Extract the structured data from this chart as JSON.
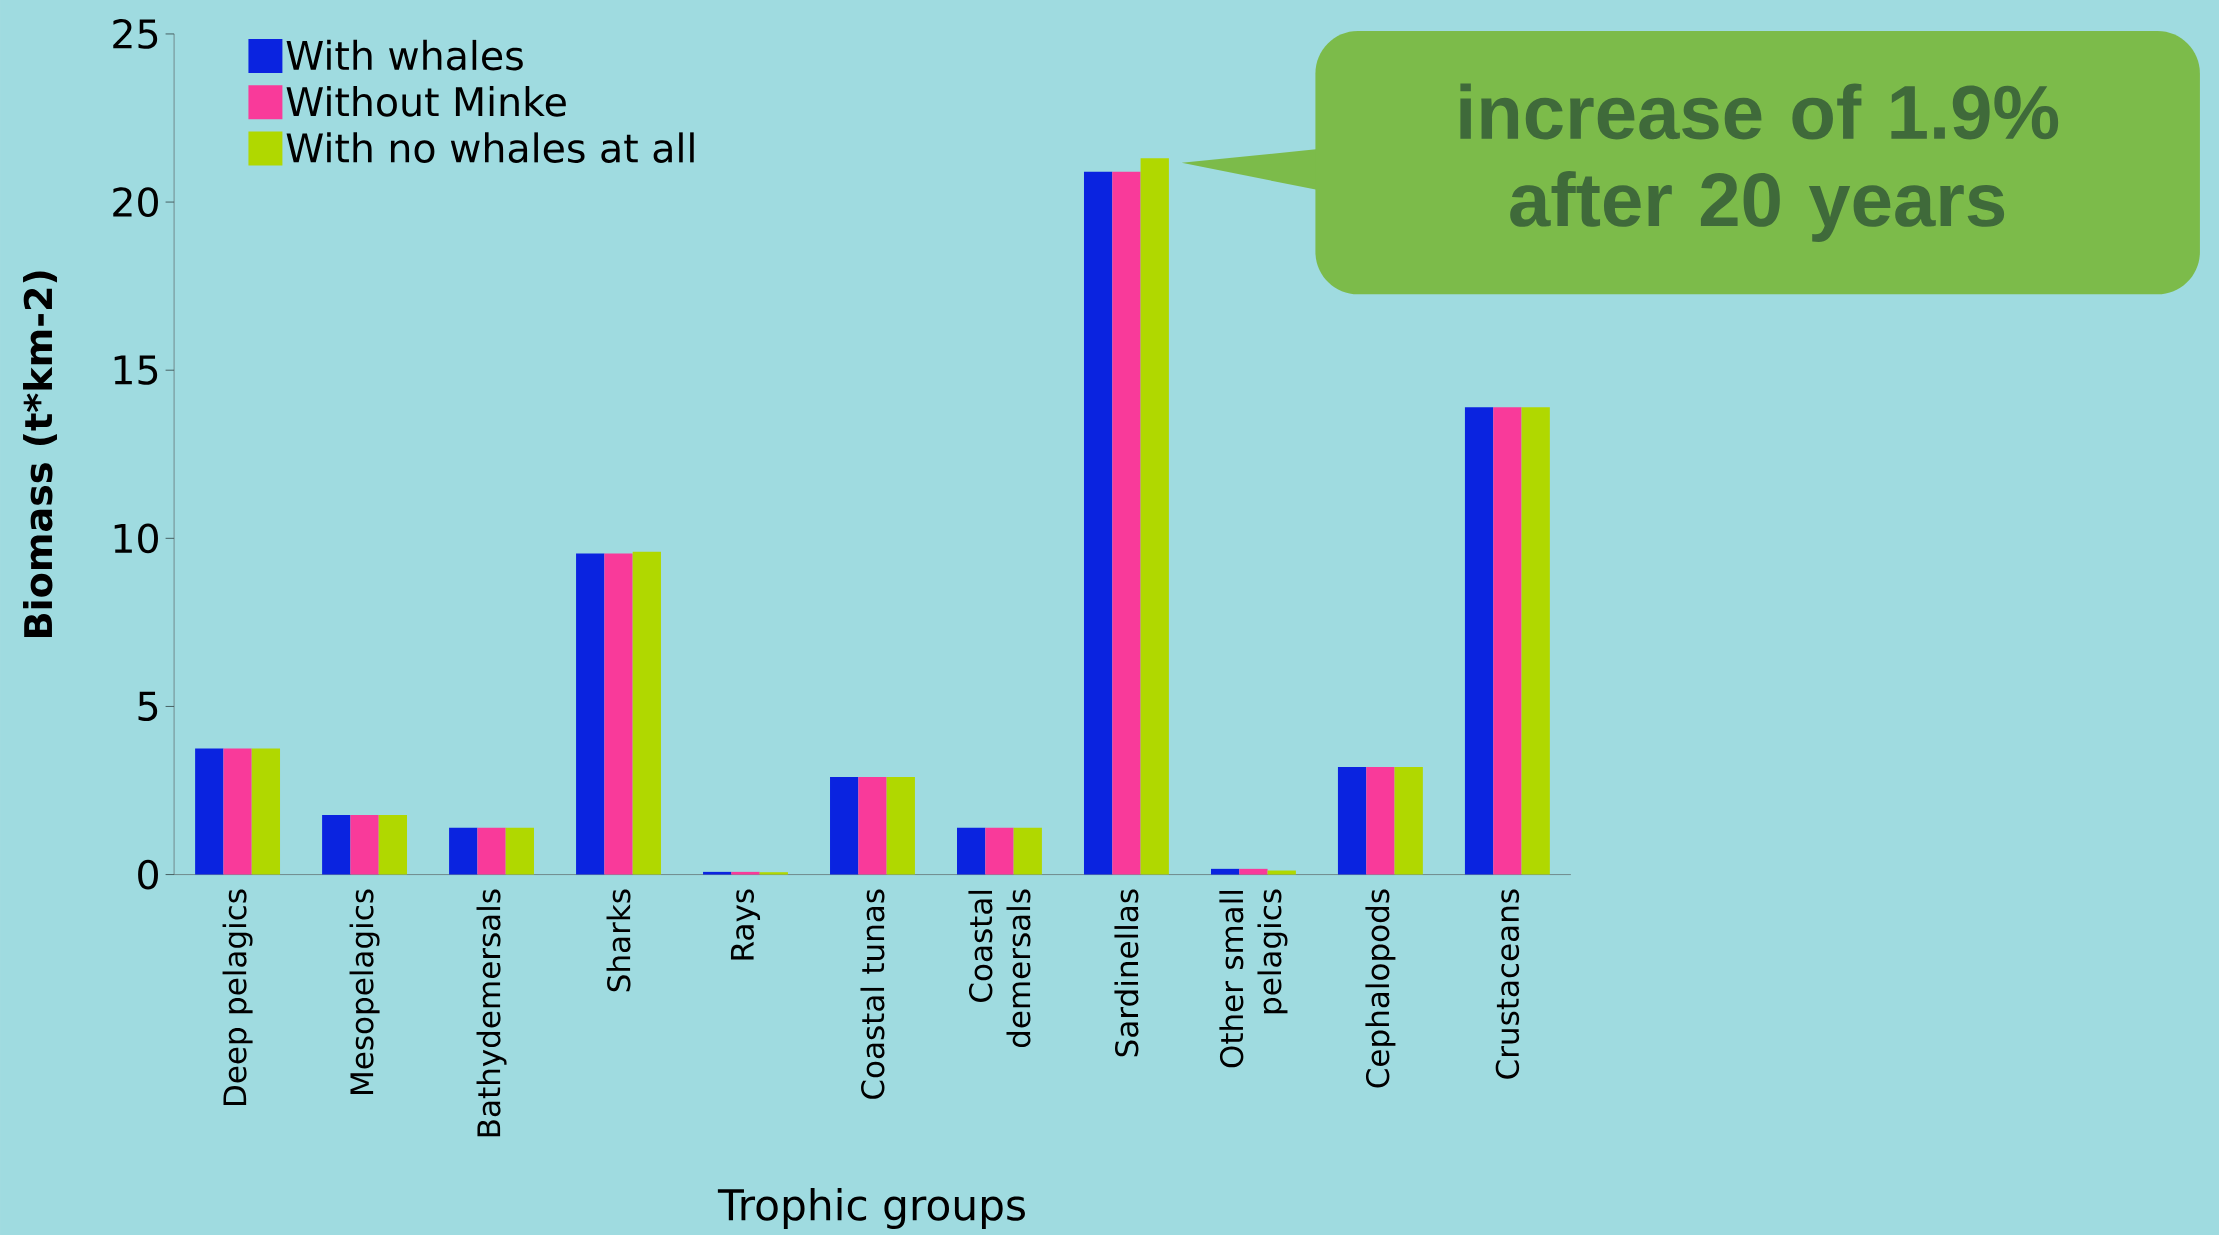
{
  "chart_data": {
    "type": "bar",
    "xlabel": "Trophic groups",
    "ylabel": "Biomass (t*km-2)",
    "categories": [
      "Deep pelagics",
      "Mesopelagics",
      "Bathydemersals",
      "Sharks",
      "Rays",
      "Coastal tunas",
      "Coastal demersals",
      "Sardinellas",
      "Other small pelagics",
      "Cephalopods",
      "Crustaceans"
    ],
    "series": [
      {
        "name": "With whales",
        "color": "#0a23e0",
        "values": [
          3.75,
          1.77,
          1.39,
          9.55,
          0.08,
          2.9,
          1.39,
          20.9,
          0.17,
          3.2,
          13.9
        ]
      },
      {
        "name": "Without Minke",
        "color": "#f93a9a",
        "values": [
          3.75,
          1.77,
          1.39,
          9.55,
          0.08,
          2.9,
          1.39,
          20.9,
          0.17,
          3.2,
          13.9
        ]
      },
      {
        "name": "With no whales at all",
        "color": "#b0d800",
        "values": [
          3.75,
          1.77,
          1.39,
          9.6,
          0.07,
          2.9,
          1.39,
          21.3,
          0.12,
          3.2,
          13.9
        ]
      }
    ],
    "ylim": [
      0,
      25
    ],
    "yticks": [
      0,
      5,
      10,
      15,
      20,
      25
    ],
    "grid": false,
    "legend": "top left",
    "annotations": [
      "increase of 1.9% after 20 years"
    ]
  }
}
